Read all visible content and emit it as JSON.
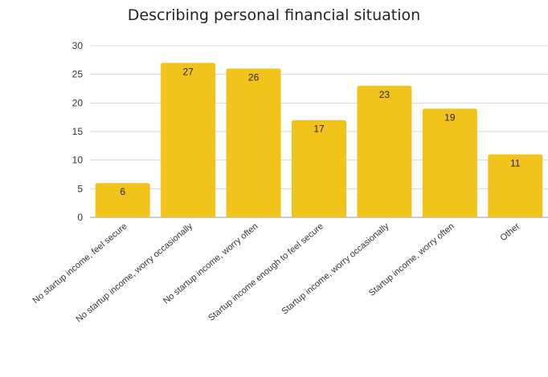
{
  "chart_data": {
    "type": "bar",
    "title": "Describing personal financial situation",
    "xlabel": "",
    "ylabel": "",
    "categories": [
      "No startup income, feel secure",
      "No startup income, worry occasionally",
      "No startup income, worry often",
      "Startup income enough to feel secure",
      "Startup income, worry occasionally",
      "Startup income, worry often",
      "Other"
    ],
    "values": [
      6,
      27,
      26,
      17,
      23,
      19,
      11
    ],
    "ylim": [
      0,
      30
    ],
    "yticks": [
      "0",
      "5",
      "10",
      "15",
      "20",
      "25",
      "30"
    ],
    "grid": true,
    "legend": "none",
    "bar_color": "#f2c31a"
  }
}
